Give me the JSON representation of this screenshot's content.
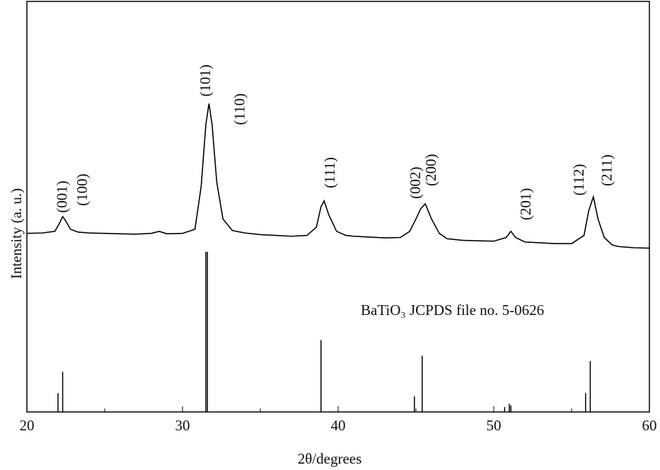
{
  "chart_data": {
    "type": "line",
    "xlabel": "2θ/degrees",
    "ylabel": "Intensity (a. u.)",
    "xlim": [
      20,
      60
    ],
    "xticks": [
      20,
      30,
      40,
      50,
      60
    ],
    "xminorticks": [
      25,
      35,
      45,
      55
    ],
    "ylim": [
      0,
      100
    ],
    "series": [
      {
        "style": "line",
        "color": "#000000",
        "x": [
          20,
          21,
          21.8,
          22.1,
          22.3,
          22.5,
          22.8,
          23.3,
          24,
          25,
          26,
          27,
          28,
          28.5,
          29,
          30,
          30.8,
          31.2,
          31.5,
          31.7,
          31.9,
          32.2,
          32.6,
          33.2,
          34,
          35,
          36,
          37,
          38,
          38.6,
          38.9,
          39.1,
          39.4,
          39.9,
          40.5,
          41,
          42,
          43,
          44,
          44.6,
          45,
          45.3,
          45.6,
          46,
          46.5,
          47,
          48,
          49,
          50,
          50.8,
          51.1,
          51.4,
          52,
          53,
          54,
          55,
          55.8,
          56.1,
          56.4,
          56.7,
          57.1,
          57.6,
          58,
          59,
          60
        ],
        "values": [
          43.5,
          43.6,
          44,
          46,
          47.6,
          46.5,
          44.5,
          43.8,
          43.6,
          43.5,
          43.4,
          43.3,
          43.5,
          44,
          43.4,
          43.5,
          44.5,
          55,
          70,
          75.1,
          70,
          56,
          47,
          44.2,
          43.6,
          43.2,
          43,
          42.8,
          43,
          45,
          50,
          51.4,
          48,
          44,
          43,
          42.8,
          42.6,
          42.4,
          42.5,
          44,
          47,
          49.5,
          50.7,
          47,
          43.5,
          42.2,
          41.8,
          41.7,
          41.6,
          42.5,
          44,
          42.5,
          41.4,
          41.2,
          41,
          41,
          43,
          49,
          52.4,
          47,
          42.5,
          40.7,
          40.3,
          40,
          39.9
        ]
      },
      {
        "style": "stick",
        "color": "#000000",
        "x": [
          22.0,
          22.3,
          31.5,
          31.6,
          38.9,
          44.9,
          45.4,
          50.7,
          51.0,
          51.1,
          55.9,
          56.2
        ],
        "values": [
          4.6,
          9.8,
          39,
          39,
          17.5,
          3.8,
          13.7,
          1.2,
          2,
          1.6,
          4.6,
          12.4
        ]
      }
    ],
    "annotations": [
      {
        "text": "(001)",
        "x": 22.3,
        "y": 48.5
      },
      {
        "text": "(100)",
        "x": 23.6,
        "y": 50.2
      },
      {
        "text": "(101)",
        "x": 31.5,
        "y": 76.8
      },
      {
        "text": "(110)",
        "x": 33.7,
        "y": 69.9
      },
      {
        "text": "(111)",
        "x": 39.5,
        "y": 54.5
      },
      {
        "text": "(002)",
        "x": 45.0,
        "y": 51.9
      },
      {
        "text": "(200)",
        "x": 46.0,
        "y": 55
      },
      {
        "text": "(201)",
        "x": 52.1,
        "y": 46.7
      },
      {
        "text": "(112)",
        "x": 55.5,
        "y": 52.7
      },
      {
        "text": "(211)",
        "x": 57.3,
        "y": 55
      }
    ],
    "reference_label": "BaTiO₃ JCPDS file no. 5-0626"
  }
}
